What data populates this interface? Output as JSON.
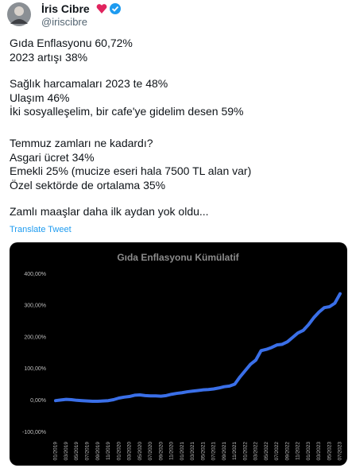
{
  "author": {
    "name": "İris Cibre",
    "handle": "@iriscibre"
  },
  "paragraphs": [
    [
      "Gıda Enflasyonu 60,72%",
      "2023 artışı 38%"
    ],
    [
      "Sağlık harcamaları 2023 te 48%",
      "Ulaşım 46%",
      "İki sosyalleşelim, bir cafe'ye gidelim desen 59%"
    ],
    [
      "Temmuz zamları ne kadardı?",
      "Asgari ücret 34%",
      "Emekli 25% (mucize eseri hala 7500 TL alan var)",
      "Özel sektörde de ortalama 35%"
    ],
    [
      "Zamlı maaşlar daha ilk aydan yok oldu..."
    ]
  ],
  "translate": "Translate Tweet",
  "chart_data": {
    "type": "line",
    "title": "Gıda Enflasyonu Kümülatif",
    "categories": [
      "01/2019",
      null,
      "03/2019",
      null,
      "05/2019",
      null,
      "07/2019",
      null,
      "09/2019",
      null,
      "11/2019",
      null,
      "01/2020",
      null,
      "03/2020",
      null,
      "05/2020",
      null,
      "07/2020",
      null,
      "09/2020",
      null,
      "11/2020",
      null,
      "01/2021",
      null,
      "03/2021",
      null,
      "05/2021",
      null,
      "07/2021",
      null,
      "09/2021",
      null,
      "11/2021",
      null,
      "01/2022",
      null,
      "03/2022",
      null,
      "05/2022",
      null,
      "07/2022",
      null,
      "09/2022",
      null,
      "11/2022",
      null,
      "01/2023",
      null,
      "03/2023",
      null,
      "05/2023",
      null,
      "07/2023"
    ],
    "series": [
      {
        "name": "Gıda Enflasyonu",
        "color": "#3a6fe8",
        "values": [
          0,
          2,
          4,
          3,
          1,
          0,
          -1,
          -2,
          -2,
          -1,
          0,
          3,
          8,
          11,
          13,
          17,
          18,
          16,
          15,
          15,
          14,
          16,
          20,
          23,
          25,
          28,
          30,
          32,
          34,
          35,
          37,
          40,
          44,
          46,
          52,
          75,
          95,
          115,
          128,
          158,
          162,
          168,
          176,
          178,
          186,
          200,
          214,
          222,
          240,
          262,
          280,
          294,
          297,
          308,
          338
        ]
      }
    ],
    "ylim": [
      -100,
      400
    ],
    "yticks": [
      {
        "value": -100,
        "label": "-100,00%"
      },
      {
        "value": 0,
        "label": "0,00%"
      },
      {
        "value": 100,
        "label": "100,00%"
      },
      {
        "value": 200,
        "label": "200,00%"
      },
      {
        "value": 300,
        "label": "300,00%"
      },
      {
        "value": 400,
        "label": "400,00%"
      }
    ],
    "grid": false
  }
}
